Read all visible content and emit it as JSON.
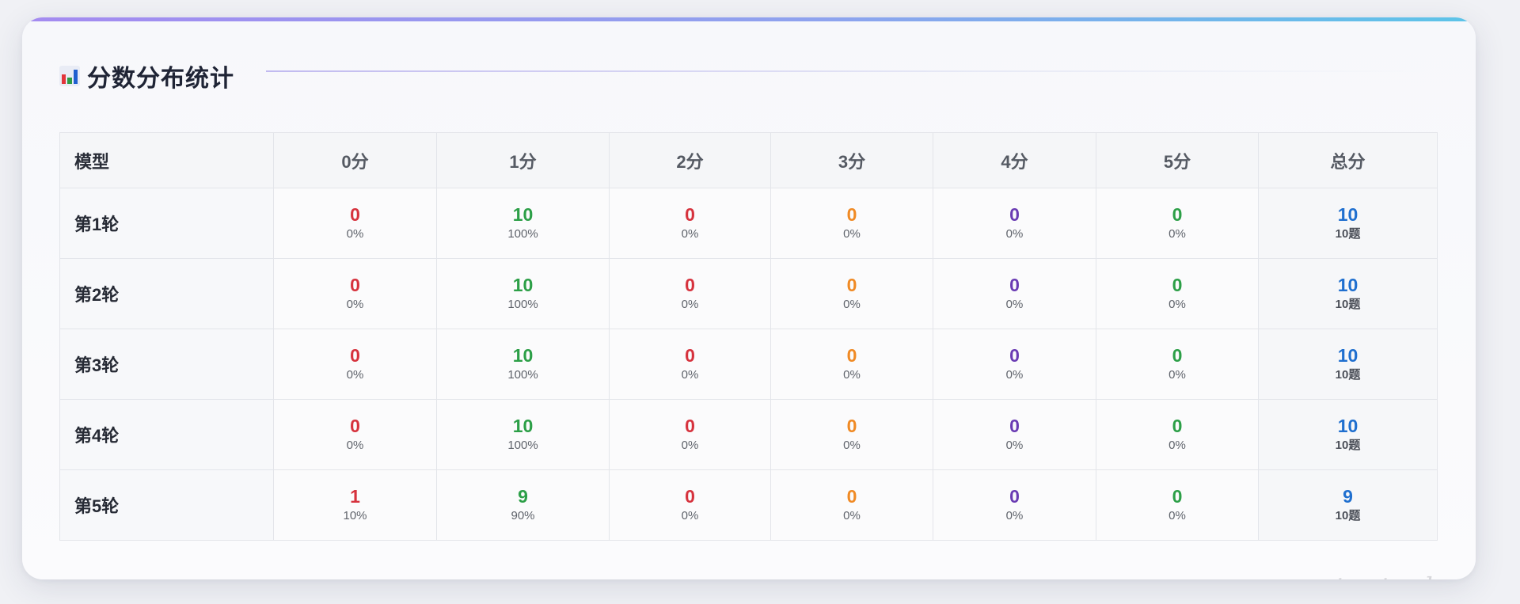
{
  "section": {
    "icon": "bar-chart-icon",
    "title": "分数分布统计"
  },
  "table": {
    "headers": [
      "模型",
      "0分",
      "1分",
      "2分",
      "3分",
      "4分",
      "5分",
      "总分"
    ],
    "rows": [
      {
        "model": "第1轮",
        "cells": [
          {
            "value": "0",
            "pct": "0%"
          },
          {
            "value": "10",
            "pct": "100%"
          },
          {
            "value": "0",
            "pct": "0%"
          },
          {
            "value": "0",
            "pct": "0%"
          },
          {
            "value": "0",
            "pct": "0%"
          },
          {
            "value": "0",
            "pct": "0%"
          }
        ],
        "total": {
          "value": "10",
          "count": "10题"
        }
      },
      {
        "model": "第2轮",
        "cells": [
          {
            "value": "0",
            "pct": "0%"
          },
          {
            "value": "10",
            "pct": "100%"
          },
          {
            "value": "0",
            "pct": "0%"
          },
          {
            "value": "0",
            "pct": "0%"
          },
          {
            "value": "0",
            "pct": "0%"
          },
          {
            "value": "0",
            "pct": "0%"
          }
        ],
        "total": {
          "value": "10",
          "count": "10题"
        }
      },
      {
        "model": "第3轮",
        "cells": [
          {
            "value": "0",
            "pct": "0%"
          },
          {
            "value": "10",
            "pct": "100%"
          },
          {
            "value": "0",
            "pct": "0%"
          },
          {
            "value": "0",
            "pct": "0%"
          },
          {
            "value": "0",
            "pct": "0%"
          },
          {
            "value": "0",
            "pct": "0%"
          }
        ],
        "total": {
          "value": "10",
          "count": "10题"
        }
      },
      {
        "model": "第4轮",
        "cells": [
          {
            "value": "0",
            "pct": "0%"
          },
          {
            "value": "10",
            "pct": "100%"
          },
          {
            "value": "0",
            "pct": "0%"
          },
          {
            "value": "0",
            "pct": "0%"
          },
          {
            "value": "0",
            "pct": "0%"
          },
          {
            "value": "0",
            "pct": "0%"
          }
        ],
        "total": {
          "value": "10",
          "count": "10题"
        }
      },
      {
        "model": "第5轮",
        "cells": [
          {
            "value": "1",
            "pct": "10%"
          },
          {
            "value": "9",
            "pct": "90%"
          },
          {
            "value": "0",
            "pct": "0%"
          },
          {
            "value": "0",
            "pct": "0%"
          },
          {
            "value": "0",
            "pct": "0%"
          },
          {
            "value": "0",
            "pct": "0%"
          }
        ],
        "total": {
          "value": "9",
          "count": "10题"
        }
      }
    ]
  },
  "colors": {
    "score_0": "#d6323d",
    "score_1": "#2c9f47",
    "score_2": "#d6323d",
    "score_3": "#f08a24",
    "score_4": "#6a3bb3",
    "score_5": "#2c9f47",
    "total": "#1f6fcf",
    "accent_gradient": [
      "#a48bf0",
      "#8ea3ee",
      "#5cc4e8"
    ]
  },
  "watermark": "testerhome.com"
}
